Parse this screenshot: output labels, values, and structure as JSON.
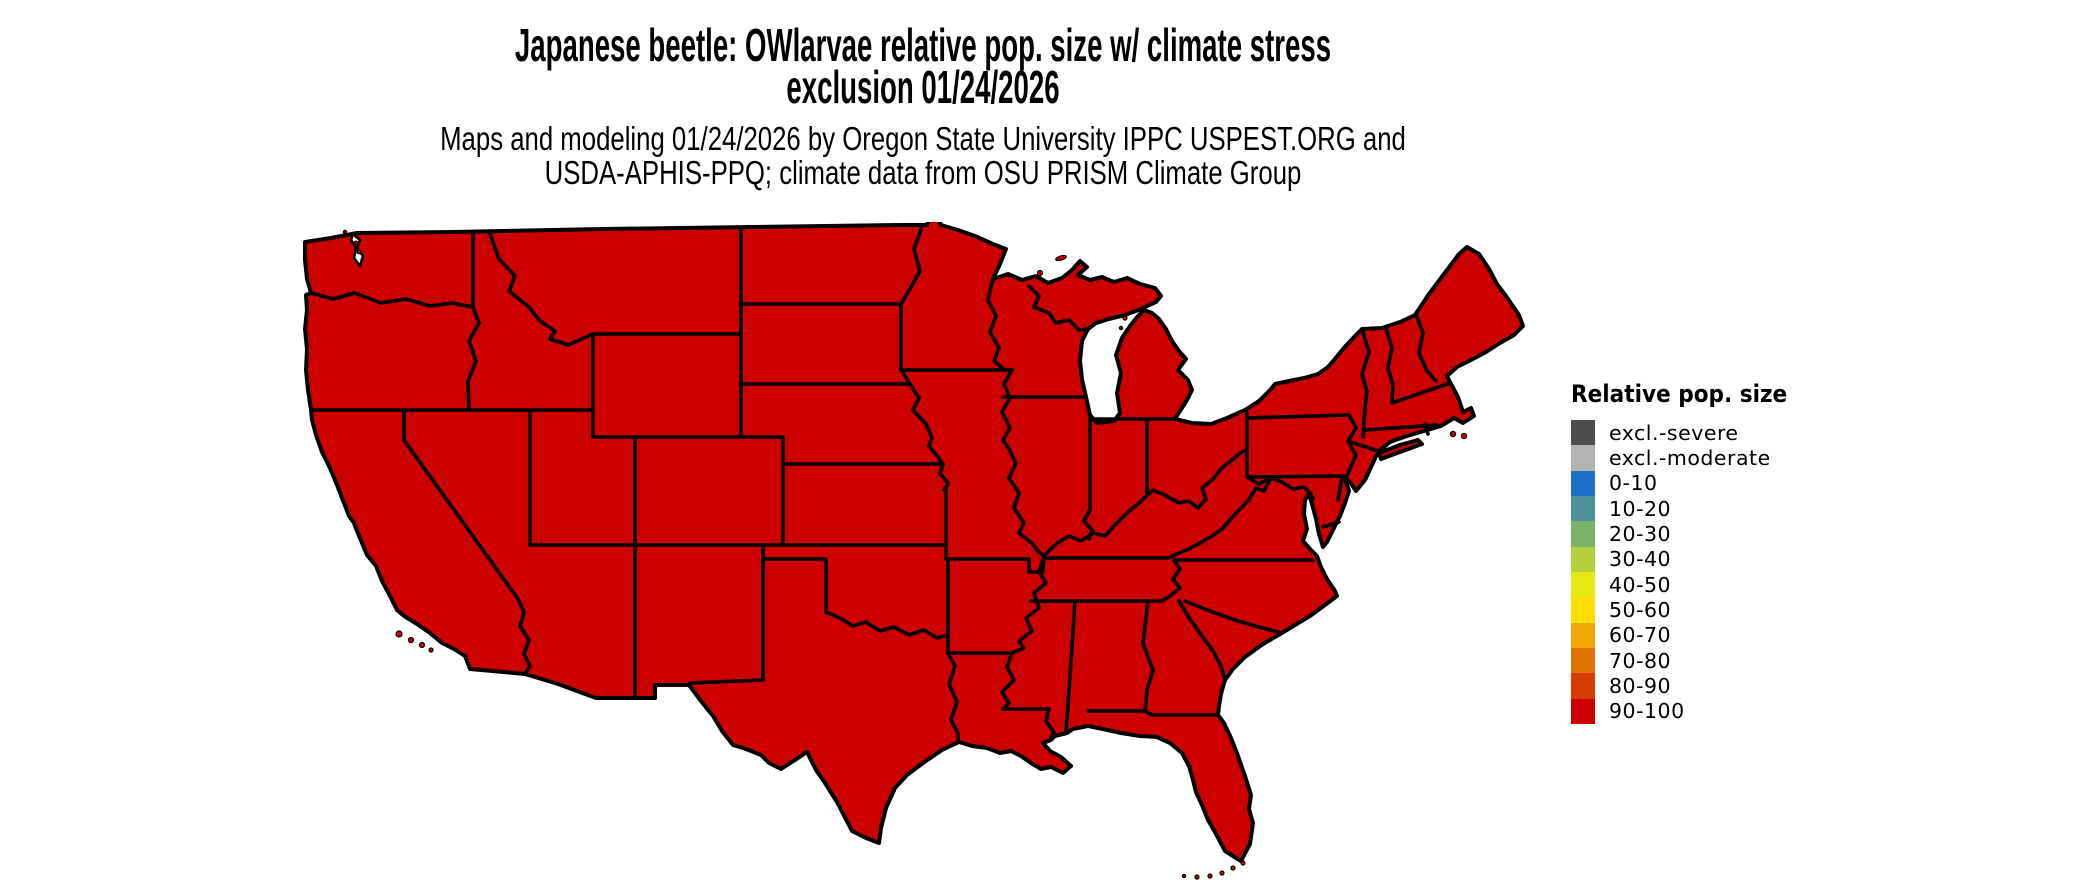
{
  "title": {
    "line1": "Japanese beetle: OWlarvae relative pop. size w/ climate stress",
    "line2": "exclusion 01/24/2026"
  },
  "subtitle": {
    "line1": "Maps and modeling 01/24/2026 by Oregon State University IPPC USPEST.ORG and",
    "line2": "USDA-APHIS-PPQ; climate data from OSU PRISM Climate Group"
  },
  "legend": {
    "title": "Relative pop. size",
    "items": [
      {
        "label": "excl.-severe",
        "color": "#4d4d4d"
      },
      {
        "label": "excl.-moderate",
        "color": "#b3b3b3"
      },
      {
        "label": "0-10",
        "color": "#1d6fc8"
      },
      {
        "label": "10-20",
        "color": "#4d929b"
      },
      {
        "label": "20-30",
        "color": "#7ab269"
      },
      {
        "label": "30-40",
        "color": "#b3d13f"
      },
      {
        "label": "40-50",
        "color": "#e3ea16"
      },
      {
        "label": "50-60",
        "color": "#fadf00"
      },
      {
        "label": "60-70",
        "color": "#eeaa00"
      },
      {
        "label": "70-80",
        "color": "#e17400"
      },
      {
        "label": "80-90",
        "color": "#d53c00"
      },
      {
        "label": "90-100",
        "color": "#cc0000"
      }
    ]
  },
  "map": {
    "region": "contiguous United States",
    "fill_hex": "#cc0000",
    "border_hex": "#000000",
    "uniform_class": "90-100"
  },
  "chart_data": {
    "type": "heatmap",
    "subtype": "choropleth-map",
    "title": "Japanese beetle: OWlarvae relative pop. size w/ climate stress exclusion 01/24/2026",
    "legend_title": "Relative pop. size",
    "classes": [
      "excl.-severe",
      "excl.-moderate",
      "0-10",
      "10-20",
      "20-30",
      "30-40",
      "40-50",
      "50-60",
      "60-70",
      "70-80",
      "80-90",
      "90-100"
    ],
    "class_colors": [
      "#4d4d4d",
      "#b3b3b3",
      "#1d6fc8",
      "#4d929b",
      "#7ab269",
      "#b3d13f",
      "#e3ea16",
      "#fadf00",
      "#eeaa00",
      "#e17400",
      "#d53c00",
      "#cc0000"
    ],
    "values": "All contiguous U.S. states shown in the 90-100 class (uniform red)",
    "legend_position": "right"
  }
}
